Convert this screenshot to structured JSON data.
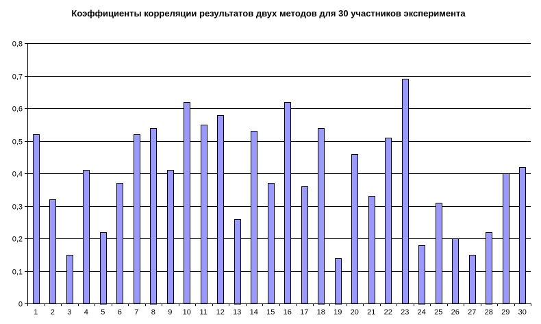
{
  "chart_data": {
    "type": "bar",
    "title": "Коэффициенты корреляции результатов двух методов для 30 участников эксперимента",
    "xlabel": "",
    "ylabel": "",
    "ylim": [
      0,
      0.8
    ],
    "yticks": [
      "0",
      "0,1",
      "0,2",
      "0,3",
      "0,4",
      "0,5",
      "0,6",
      "0,7",
      "0,8"
    ],
    "grid": true,
    "legend": "none",
    "bar_color": "#9999ff",
    "categories": [
      "1",
      "2",
      "3",
      "4",
      "5",
      "6",
      "7",
      "8",
      "9",
      "10",
      "11",
      "12",
      "13",
      "14",
      "15",
      "16",
      "17",
      "18",
      "19",
      "20",
      "21",
      "22",
      "23",
      "24",
      "25",
      "26",
      "27",
      "28",
      "29",
      "30"
    ],
    "values": [
      0.52,
      0.32,
      0.15,
      0.41,
      0.22,
      0.37,
      0.52,
      0.54,
      0.41,
      0.62,
      0.55,
      0.58,
      0.26,
      0.53,
      0.37,
      0.62,
      0.36,
      0.54,
      0.14,
      0.46,
      0.33,
      0.51,
      0.69,
      0.18,
      0.31,
      0.2,
      0.15,
      0.22,
      0.4,
      0.42
    ]
  }
}
